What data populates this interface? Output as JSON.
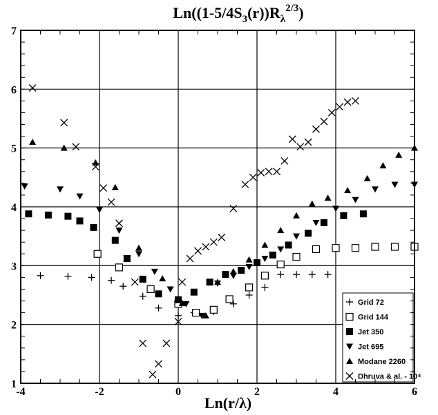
{
  "chart_data": {
    "type": "scatter",
    "title": "Ln((1-5/4S",
    "title_sub": "3",
    "title_mid": "(r))R",
    "title_sub2": "λ",
    "title_sup": "2/3",
    "title_end": ")",
    "xlabel": "Ln(r/λ)",
    "ylabel": "",
    "xlim": [
      -4,
      6
    ],
    "ylim": [
      1,
      7
    ],
    "x_ticks": [
      -4,
      -2,
      0,
      2,
      4,
      6
    ],
    "x_tick_labels": [
      "-4",
      "-2",
      "0",
      "2",
      "4",
      "6"
    ],
    "y_ticks": [
      1,
      2,
      3,
      4,
      5,
      6,
      7
    ],
    "y_tick_labels": [
      "1",
      "2",
      "3",
      "4",
      "5",
      "6",
      "7"
    ],
    "grid": true,
    "legend_position": "bottom-right",
    "series": [
      {
        "name": "Grid 72",
        "marker": "plus",
        "points": [
          [
            -3.5,
            2.83
          ],
          [
            -2.8,
            2.82
          ],
          [
            -2.2,
            2.8
          ],
          [
            -1.7,
            2.75
          ],
          [
            -1.4,
            2.65
          ],
          [
            -0.9,
            2.48
          ],
          [
            -0.5,
            2.28
          ],
          [
            0.0,
            2.15
          ],
          [
            0.4,
            2.2
          ],
          [
            0.9,
            2.22
          ],
          [
            1.4,
            2.35
          ],
          [
            1.8,
            2.5
          ],
          [
            2.2,
            2.63
          ],
          [
            2.6,
            2.85
          ],
          [
            3.0,
            2.85
          ],
          [
            3.4,
            2.85
          ],
          [
            3.8,
            2.85
          ]
        ]
      },
      {
        "name": "Grid 144",
        "marker": "open-square",
        "points": [
          [
            -2.05,
            3.2
          ],
          [
            -1.5,
            2.97
          ],
          [
            -0.7,
            2.6
          ],
          [
            0.0,
            2.35
          ],
          [
            0.45,
            2.2
          ],
          [
            0.9,
            2.25
          ],
          [
            1.3,
            2.43
          ],
          [
            1.8,
            2.63
          ],
          [
            2.2,
            2.83
          ],
          [
            2.6,
            3.02
          ],
          [
            3.0,
            3.15
          ],
          [
            3.5,
            3.28
          ],
          [
            4.0,
            3.3
          ],
          [
            4.5,
            3.3
          ],
          [
            5.0,
            3.32
          ],
          [
            5.5,
            3.32
          ],
          [
            6.0,
            3.32
          ]
        ]
      },
      {
        "name": "Jet 350",
        "marker": "filled-square",
        "points": [
          [
            -3.8,
            3.88
          ],
          [
            -3.3,
            3.86
          ],
          [
            -2.8,
            3.84
          ],
          [
            -2.5,
            3.76
          ],
          [
            -2.15,
            3.65
          ],
          [
            -1.6,
            3.43
          ],
          [
            -1.3,
            3.12
          ],
          [
            -0.9,
            2.77
          ],
          [
            -0.5,
            2.52
          ],
          [
            0.0,
            2.42
          ],
          [
            0.4,
            2.55
          ],
          [
            0.8,
            2.72
          ],
          [
            1.2,
            2.85
          ],
          [
            1.6,
            2.92
          ],
          [
            2.0,
            3.05
          ],
          [
            2.4,
            3.18
          ],
          [
            2.8,
            3.35
          ],
          [
            3.3,
            3.55
          ],
          [
            3.7,
            3.73
          ],
          [
            4.2,
            3.85
          ],
          [
            4.7,
            3.88
          ]
        ]
      },
      {
        "name": "Jet 695",
        "marker": "triangle-down",
        "points": [
          [
            -3.9,
            4.35
          ],
          [
            -3.0,
            4.3
          ],
          [
            -2.5,
            4.18
          ],
          [
            -2.0,
            3.95
          ],
          [
            -1.5,
            3.6
          ],
          [
            -1.0,
            3.2
          ],
          [
            -0.6,
            2.9
          ],
          [
            -0.2,
            2.6
          ],
          [
            0.2,
            2.35
          ],
          [
            0.6,
            2.15
          ],
          [
            1.0,
            2.7
          ],
          [
            1.4,
            2.83
          ],
          [
            1.8,
            2.98
          ],
          [
            2.2,
            3.12
          ],
          [
            2.6,
            3.28
          ],
          [
            3.0,
            3.5
          ],
          [
            3.5,
            3.73
          ],
          [
            4.0,
            3.97
          ],
          [
            4.5,
            4.12
          ],
          [
            5.0,
            4.3
          ],
          [
            5.5,
            4.38
          ],
          [
            6.0,
            4.38
          ]
        ]
      },
      {
        "name": "Modane 2260",
        "marker": "triangle-up",
        "points": [
          [
            -3.7,
            5.1
          ],
          [
            -2.9,
            5.0
          ],
          [
            -2.1,
            4.75
          ],
          [
            -1.6,
            4.33
          ],
          [
            -1.0,
            3.3
          ],
          [
            -0.4,
            2.78
          ],
          [
            0.1,
            2.36
          ],
          [
            0.7,
            2.15
          ],
          [
            1.0,
            2.72
          ],
          [
            1.4,
            2.9
          ],
          [
            1.8,
            3.1
          ],
          [
            2.2,
            3.35
          ],
          [
            2.6,
            3.6
          ],
          [
            3.0,
            3.85
          ],
          [
            3.4,
            4.05
          ],
          [
            3.8,
            4.15
          ],
          [
            4.3,
            4.28
          ],
          [
            4.8,
            4.48
          ],
          [
            5.2,
            4.7
          ],
          [
            5.6,
            4.88
          ],
          [
            6.0,
            5.0
          ]
        ]
      },
      {
        "name": "Dhruva & al. - 10⁴",
        "marker": "cross",
        "points": [
          [
            -3.7,
            6.02
          ],
          [
            -2.9,
            5.43
          ],
          [
            -2.6,
            5.02
          ],
          [
            -2.1,
            4.68
          ],
          [
            -1.9,
            4.32
          ],
          [
            -1.7,
            4.08
          ],
          [
            -1.5,
            3.72
          ],
          [
            -1.3,
            3.12
          ],
          [
            -1.1,
            2.72
          ],
          [
            -0.9,
            1.68
          ],
          [
            -0.65,
            1.15
          ],
          [
            -0.5,
            1.33
          ],
          [
            -0.3,
            1.68
          ],
          [
            0.0,
            2.05
          ],
          [
            0.1,
            2.72
          ],
          [
            0.3,
            3.12
          ],
          [
            0.5,
            3.25
          ],
          [
            0.7,
            3.32
          ],
          [
            0.9,
            3.4
          ],
          [
            1.1,
            3.48
          ],
          [
            1.4,
            3.97
          ],
          [
            1.7,
            4.38
          ],
          [
            1.9,
            4.5
          ],
          [
            2.1,
            4.58
          ],
          [
            2.3,
            4.6
          ],
          [
            2.5,
            4.6
          ],
          [
            2.7,
            4.78
          ],
          [
            2.9,
            5.15
          ],
          [
            3.1,
            5.02
          ],
          [
            3.3,
            5.1
          ],
          [
            3.5,
            5.32
          ],
          [
            3.7,
            5.45
          ],
          [
            3.9,
            5.6
          ],
          [
            4.1,
            5.7
          ],
          [
            4.3,
            5.78
          ],
          [
            4.5,
            5.8
          ]
        ]
      }
    ]
  }
}
